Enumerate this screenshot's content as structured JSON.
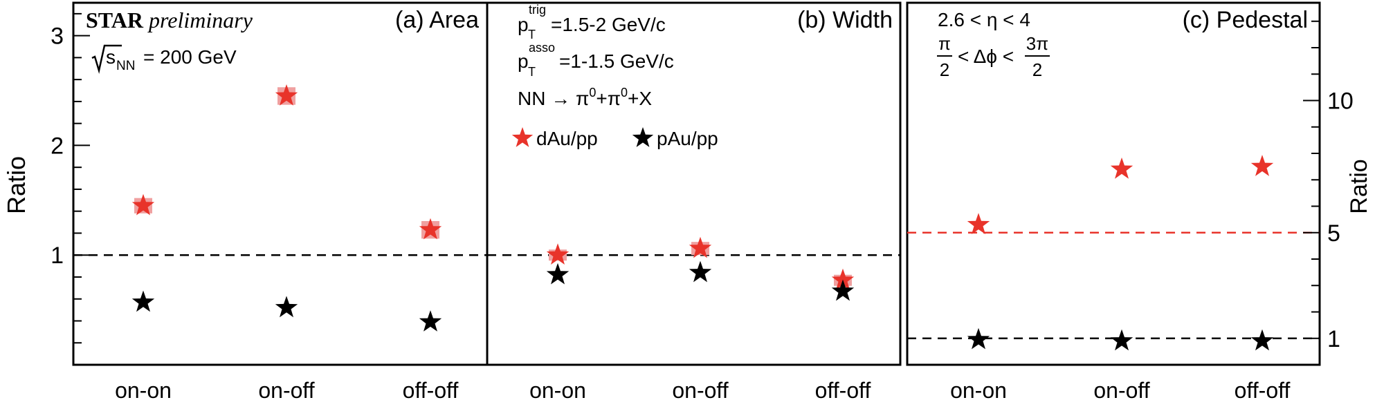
{
  "figure": {
    "experiment": "STAR",
    "status": "preliminary",
    "energy_text": "s",
    "energy_sub": "NN",
    "energy_value": "= 200 GeV",
    "pt_trig_text": "=1.5-2 GeV/c",
    "pt_asso_text": "=1-1.5 GeV/c",
    "pt_sym": "p",
    "pt_sub": "T",
    "trig_sup": "trig",
    "asso_sup": "asso",
    "reaction_lhs": "NN",
    "reaction_arrow": "→",
    "reaction_pi1": "π",
    "reaction_sup": "0",
    "reaction_pi2": "+π",
    "reaction_rest": "+X",
    "eta_range": "2.6 < η < 4",
    "dphi_lt": "< Δϕ <",
    "dphi_left_num": "π",
    "dphi_left_den": "2",
    "dphi_right_num": "3π",
    "dphi_right_den": "2",
    "left_axis_label": "Ratio",
    "right_axis_label": "Ratio"
  },
  "colors": {
    "dAu": "#e8332a",
    "dAu_sys": "#f0a0a0",
    "pAu": "#000000",
    "ref_a_b": "#000000",
    "ref_c_red": "#e8332a",
    "ref_c_black": "#000000"
  },
  "chart_data": [
    {
      "type": "scatter",
      "panel_label": "(a) Area",
      "categories": [
        "on-on",
        "on-off",
        "off-off"
      ],
      "ylim": [
        0,
        3.3
      ],
      "yticks": [
        1,
        2,
        3
      ],
      "ytick_labels": [
        "1",
        "2",
        "3"
      ],
      "reference_line": 1,
      "series": [
        {
          "name": "dAu/pp",
          "values": [
            1.45,
            2.45,
            1.23
          ],
          "sys_unc": [
            0.07,
            0.08,
            0.08
          ]
        },
        {
          "name": "pAu/pp",
          "values": [
            0.57,
            0.52,
            0.39
          ]
        }
      ]
    },
    {
      "type": "scatter",
      "panel_label": "(b) Width",
      "categories": [
        "on-on",
        "on-off",
        "off-off"
      ],
      "ylim": [
        0,
        3.3
      ],
      "reference_line": 1,
      "series": [
        {
          "name": "dAu/pp",
          "values": [
            1.0,
            1.06,
            0.77
          ],
          "sys_unc": [
            0.03,
            0.06,
            0.03
          ]
        },
        {
          "name": "pAu/pp",
          "values": [
            0.82,
            0.84,
            0.67
          ]
        }
      ]
    },
    {
      "type": "scatter",
      "panel_label": "(c) Pedestal",
      "categories": [
        "on-on",
        "on-off",
        "off-off"
      ],
      "ylim": [
        0,
        13.7
      ],
      "yticks": [
        1,
        5,
        10
      ],
      "ytick_labels": [
        "1",
        "5",
        "10"
      ],
      "reference_lines": [
        5.0,
        1.0
      ],
      "series": [
        {
          "name": "dAu/pp",
          "values": [
            5.3,
            7.4,
            7.5
          ]
        },
        {
          "name": "pAu/pp",
          "values": [
            0.95,
            0.9,
            0.9
          ]
        }
      ]
    }
  ]
}
